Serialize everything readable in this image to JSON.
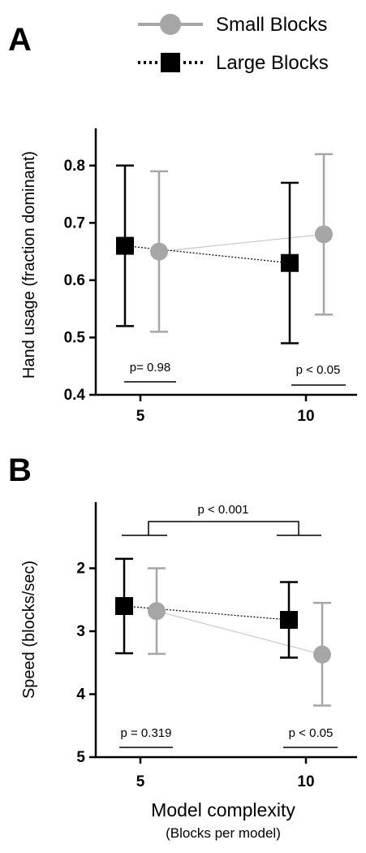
{
  "panels": {
    "a_letter": "A",
    "b_letter": "B"
  },
  "legend": {
    "small_label": "Small Blocks",
    "large_label": "Large Blocks"
  },
  "colors": {
    "small": "#a6a6a6",
    "large": "#000000"
  },
  "annotations_a": {
    "left": "p= 0.98",
    "right": "p < 0.05"
  },
  "annotations_b": {
    "left": "p = 0.319",
    "right": "p < 0.05",
    "top": "p < 0.001"
  },
  "chart_data": [
    {
      "type": "scatter",
      "ylabel": "Hand usage (fraction dominant)",
      "xlabel": "",
      "categories": [
        "5",
        "10"
      ],
      "ylim": [
        0.4,
        0.85
      ],
      "yticks": [
        0.4,
        0.5,
        0.6,
        0.7,
        0.8
      ],
      "ytick_labels": [
        "0.4",
        "0.5",
        "0.6",
        "0.7",
        "0.8"
      ],
      "series": [
        {
          "name": "Small Blocks",
          "values": [
            0.65,
            0.68
          ],
          "err_low": [
            0.51,
            0.54
          ],
          "err_high": [
            0.79,
            0.82
          ]
        },
        {
          "name": "Large Blocks",
          "values": [
            0.66,
            0.63
          ],
          "err_low": [
            0.52,
            0.49
          ],
          "err_high": [
            0.8,
            0.77
          ]
        }
      ]
    },
    {
      "type": "scatter",
      "ylabel": "Speed (blocks/sec)",
      "xlabel": "Model complexity",
      "xlabel_sub": "(Blocks per model)",
      "categories": [
        "5",
        "10"
      ],
      "ylim": [
        5,
        1.2
      ],
      "inverted": true,
      "yticks": [
        2,
        3,
        4,
        5
      ],
      "ytick_labels": [
        "2",
        "3",
        "4",
        "5"
      ],
      "series": [
        {
          "name": "Small Blocks",
          "values": [
            2.68,
            3.37
          ],
          "err_low": [
            2.0,
            2.55
          ],
          "err_high": [
            3.36,
            4.18
          ]
        },
        {
          "name": "Large Blocks",
          "values": [
            2.6,
            2.82
          ],
          "err_low": [
            1.85,
            2.22
          ],
          "err_high": [
            3.35,
            3.42
          ]
        }
      ]
    }
  ]
}
